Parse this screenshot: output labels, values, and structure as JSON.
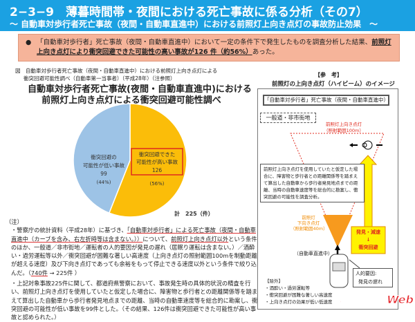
{
  "header": {
    "title": "2−3−9　薄暮時間帯・夜間における死亡事故に係る分析（その7）",
    "subtitle": "～ 自動車対歩行者死亡事故（夜間・自動車直進中）における前照灯上向き点灯の事故防止効果　～"
  },
  "summary": {
    "bullet": "●",
    "text_before": "「自動車対歩行者」死亡事故（夜間・自動車直進中）において一定の条件下で発生したものを調査分析した結果、",
    "text_emph": "前照灯上向き点灯により衝突回避できた可能性の高い事故が126 件（約56%）",
    "text_after": "あった。"
  },
  "figure": {
    "caption1": "図　自動車対歩行者死亡事故（夜間・自動車直進中）における前照灯上向き点灯による",
    "caption2": "衝突回避可能性調べ（自動車第一当事者）（平成28年）（注参照）",
    "total": "計　225（件）"
  },
  "chart_data": {
    "type": "pie",
    "title": "自動車対歩行者死亡事故(夜間・自動車直進中)における\n前照灯上向き点灯による衝突回避可能性調べ",
    "slices": [
      {
        "label": "衝突回避できた可能性が高い事故",
        "label_line1": "衝突回避できた",
        "label_line2": "可能性が高い事故",
        "value": 126,
        "percent": "(56%)",
        "color": "#fbbd09",
        "highlight": "#e02a1e"
      },
      {
        "label": "衝突回避の可能性が低い事故",
        "label_line1": "衝突回避の",
        "label_line2": "可能性が低い事故",
        "value": 99,
        "percent": "(44%)",
        "color": "#9dc3e6"
      }
    ],
    "start": "12 o'clock",
    "direction": "clockwise"
  },
  "notes": {
    "head": "（注）",
    "n1_a": "・警察庁の統計資料（平成28年）に基づき、",
    "n1_u1": "「自動車対歩行者」による死亡事故（夜間・自動車直進中（カーブを含み、右左折時等は含まない。））",
    "n1_b": "について、",
    "n1_u2": "前照灯上向き点灯以外",
    "n1_c": "という条件のほか、一般道／非市街地／運転者の人的要因が発見の遅れ（居眠り運転は含まない。）／酒酔い・過労運転等以外／衝突回避が困難な著しい高速度（上向き点灯の照射範囲100mを制動距離が超える速度）及び下向き点灯であっても余裕をもって停止できる速度以外という条件で絞り込んだ。（",
    "n1_u3": "740件",
    "n1_d": " → 225件 ）",
    "n2": "・上記対象事故225件に関して、都道府県警察において、事故発生時の具体的状況の精査を行い、前照灯上向き点灯を使用していたと仮定した場合に、障害物と歩行者との距離関係等を踏まえて算出した自動車から歩行者発見地点までの距離、当時の自動車速度等を総合的に勘案し、衝突回避の可能性が低い事故を99件とした。（その結果、126件は衝突回避できた可能性が高い事故と認められた。）"
  },
  "reference": {
    "head": "【参　考】",
    "title": "前照灯の上向き点灯（ハイビーム）のイメージ",
    "box_title": "「自動車対歩行者」死亡事故（夜間・自動車直進中）",
    "road": "一般道・非市街地",
    "high_beam1": "前照灯上向き点灯",
    "high_beam2": "（照射範囲100m）",
    "explain": "前照灯上向き点灯を使用していたと仮定した場合に、障害物と歩行者との距離関係等を踏まえて算出した自動車から歩行者発見地点までの距離、当時の自動車速度等を総合的に勘案し、衝突回避の可能性を調査分析。",
    "low_beam1": "前照灯",
    "low_beam2": "下向き点灯",
    "low_beam3": "（照射範囲40m）",
    "avoid1": "発見・減速",
    "avoid_arrow": "↓",
    "avoid2": "衝突回避",
    "car_label": "（自動車直進中）",
    "human1": "人的要因:",
    "human2": "発見の遅れ",
    "excl_head": "【除外】",
    "excl": [
      "・酒酔い・過労運転等",
      "・衝突回避が困難な著しい高速度",
      "・上向き点灯の効果が低い低速度"
    ]
  },
  "watermark": "ベストカーWeb"
}
